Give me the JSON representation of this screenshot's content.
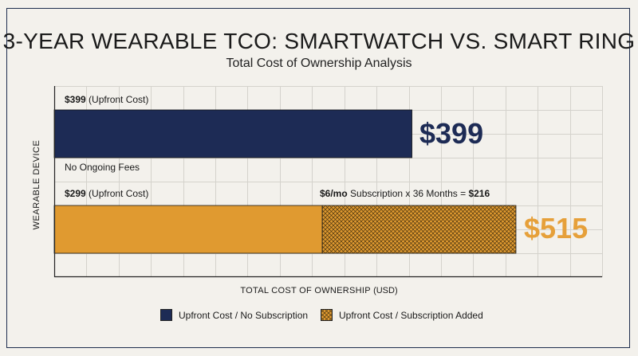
{
  "chart_data": {
    "type": "bar",
    "orientation": "horizontal",
    "stacked": true,
    "title": "3-YEAR WEARABLE TCO: SMARTWATCH VS. SMART RING",
    "subtitle": "Total Cost of Ownership Analysis",
    "xlabel": "TOTAL COST OF OWNERSHIP",
    "xlabel_unit": "(USD)",
    "ylabel": "WEARABLE DEVICE",
    "xlim": [
      0,
      550
    ],
    "grid": true,
    "legend_position": "bottom",
    "colors": {
      "navy": "#1d2b55",
      "orange": "#e09a30",
      "orange_text": "#e6a03a"
    },
    "bars": [
      {
        "segments": [
          {
            "series": "Upfront Cost / No Subscription",
            "value": 399
          }
        ],
        "total": 399,
        "total_label": "$399",
        "top_note": {
          "bold": "$399",
          "text": " (Upfront Cost)"
        },
        "bottom_note": "No Ongoing Fees"
      },
      {
        "segments": [
          {
            "series": "Upfront Cost / Subscription Added",
            "value": 299
          },
          {
            "series": "Upfront Cost / Subscription Added",
            "value": 216,
            "pattern": "crosshatch"
          }
        ],
        "total": 515,
        "total_label": "$515",
        "top_note": {
          "bold": "$299",
          "text": " (Upfront Cost)"
        },
        "sub_note": {
          "bold1": "$6/mo",
          "text": " Subscription x 36 Months = ",
          "bold2": "$216"
        }
      }
    ],
    "legend": [
      {
        "label": "Upfront Cost / No Subscription",
        "color": "#1d2b55",
        "pattern": "solid"
      },
      {
        "label": "Upfront Cost / Subscription Added",
        "color": "#e09a30",
        "pattern": "crosshatch"
      }
    ]
  }
}
